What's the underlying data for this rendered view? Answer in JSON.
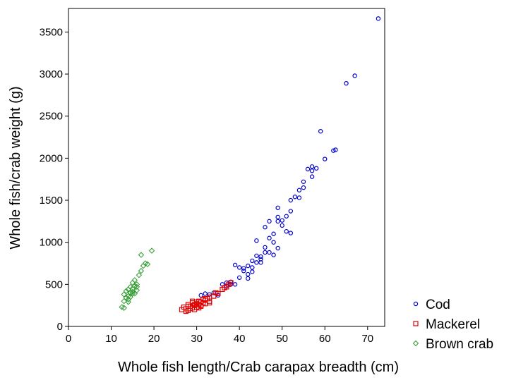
{
  "chart_data": {
    "type": "scatter",
    "x_label": "Whole fish length/Crab carapax breadth (cm)",
    "y_label": "Whole fish/crab weight (g)",
    "xlim": [
      0,
      74
    ],
    "ylim": [
      0,
      3780
    ],
    "xticks": [
      0,
      10,
      20,
      30,
      40,
      50,
      60,
      70
    ],
    "yticks": [
      0,
      500,
      1000,
      1500,
      2000,
      2500,
      3000,
      3500
    ],
    "grid": false,
    "legend": "outside-bottom-right",
    "series": [
      {
        "name": "Cod",
        "color": "#0000cc",
        "marker": "circle",
        "x": [
          31,
          32,
          33,
          34,
          35,
          36,
          37,
          37,
          38,
          38,
          39,
          40,
          40,
          41,
          42,
          42,
          43,
          43,
          44,
          44,
          45,
          45,
          46,
          46,
          47,
          47,
          48,
          48,
          49,
          49,
          49,
          50,
          51,
          51,
          52,
          52,
          52,
          53,
          54,
          54,
          55,
          56,
          57,
          57,
          57,
          58,
          59,
          60,
          62,
          62.5,
          65,
          67,
          72.5,
          39,
          41,
          43,
          44,
          45,
          46,
          47,
          48,
          50,
          49,
          55,
          42
        ],
        "values": [
          370,
          390,
          380,
          400,
          370,
          500,
          520,
          480,
          500,
          530,
          730,
          580,
          700,
          690,
          720,
          620,
          650,
          780,
          760,
          1020,
          830,
          800,
          940,
          1180,
          880,
          1250,
          1000,
          1100,
          1300,
          1410,
          1250,
          1260,
          1130,
          1310,
          1370,
          1110,
          1500,
          1540,
          1530,
          1620,
          1650,
          1870,
          1850,
          1780,
          1900,
          1880,
          2320,
          1990,
          2090,
          2100,
          2890,
          2980,
          3660,
          500,
          660,
          700,
          840,
          760,
          880,
          1050,
          850,
          1200,
          930,
          1720,
          570
        ]
      },
      {
        "name": "Mackerel",
        "color": "#e00000",
        "marker": "square",
        "x": [
          26.5,
          27,
          27.5,
          28,
          28,
          28.5,
          29,
          29,
          29.5,
          29.5,
          30,
          30,
          30.5,
          30.5,
          31,
          31,
          31.5,
          31.5,
          32,
          32,
          32.5,
          33,
          33,
          34,
          34.5,
          35,
          36,
          36.5,
          37,
          37.5,
          38,
          27.5,
          28.5,
          29,
          30,
          31,
          32,
          33,
          28,
          29.5,
          30.5
        ],
        "values": [
          200,
          230,
          210,
          260,
          190,
          240,
          220,
          280,
          250,
          200,
          270,
          230,
          260,
          300,
          240,
          290,
          280,
          320,
          270,
          310,
          330,
          300,
          350,
          360,
          400,
          390,
          440,
          460,
          470,
          500,
          520,
          180,
          210,
          300,
          290,
          250,
          330,
          280,
          240,
          260,
          220
        ]
      },
      {
        "name": "Brown crab",
        "color": "#2e9b2e",
        "marker": "diamond",
        "x": [
          12.5,
          13,
          13,
          13.5,
          13.5,
          14,
          14,
          14,
          14.5,
          14.5,
          15,
          15,
          15,
          15.5,
          15.5,
          16,
          16,
          16.5,
          17,
          17,
          17.5,
          18,
          18.5,
          19.5,
          13,
          14,
          15,
          16,
          14.5,
          15.5
        ],
        "values": [
          230,
          300,
          380,
          340,
          420,
          360,
          440,
          290,
          400,
          470,
          390,
          450,
          520,
          480,
          550,
          430,
          500,
          610,
          660,
          850,
          720,
          750,
          740,
          900,
          220,
          320,
          410,
          470,
          350,
          390
        ]
      }
    ]
  }
}
